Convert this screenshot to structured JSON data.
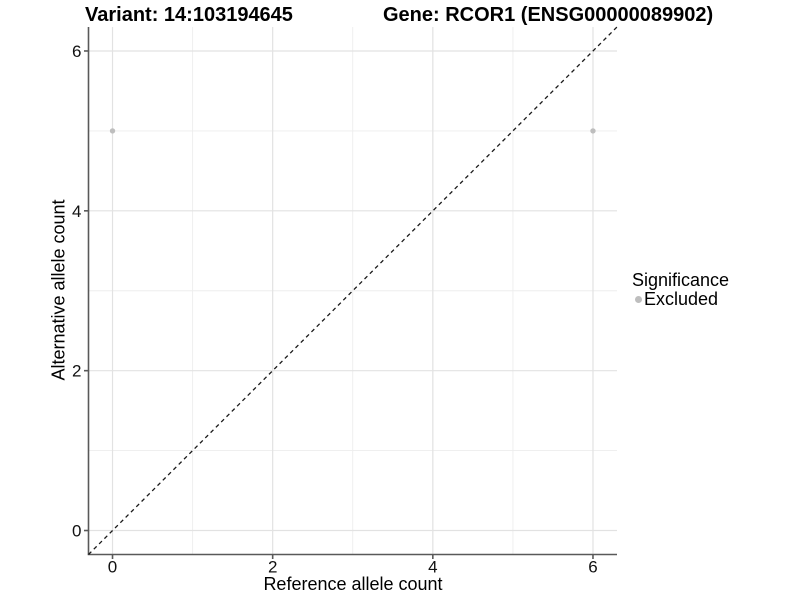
{
  "header": {
    "variant_title": "Variant: 14:103194645",
    "gene_title": "Gene: RCOR1 (ENSG00000089902)"
  },
  "axes": {
    "x_label": "Reference allele count",
    "y_label": "Alternative allele count"
  },
  "legend": {
    "title": "Significance",
    "items": [
      {
        "label": "Excluded",
        "color": "#bebebe"
      }
    ]
  },
  "colors": {
    "background": "#ffffff",
    "grid_major": "#e2e2e2",
    "grid_minor": "#ededed",
    "axis_line": "#595959",
    "tick_text": "#111111",
    "point_excluded": "#bebebe",
    "reference_line": "#1a1a1a"
  },
  "chart_data": {
    "type": "scatter",
    "title": "Variant: 14:103194645   Gene: RCOR1 (ENSG00000089902)",
    "xlabel": "Reference allele count",
    "ylabel": "Alternative allele count",
    "xlim": [
      -0.3,
      6.3
    ],
    "ylim": [
      -0.3,
      6.3
    ],
    "x_ticks": [
      0,
      2,
      4,
      6
    ],
    "y_ticks": [
      0,
      2,
      4,
      6
    ],
    "x_minor_ticks": [
      1,
      3,
      5
    ],
    "y_minor_ticks": [
      1,
      3,
      5
    ],
    "grid": true,
    "legend_title": "Significance",
    "legend_position": "right",
    "series": [
      {
        "name": "Excluded",
        "color": "#bebebe",
        "points": [
          [
            0,
            5
          ],
          [
            6,
            5
          ]
        ]
      }
    ],
    "reference_line": {
      "type": "identity-diagonal",
      "equation": "y = x",
      "style": "dashed",
      "color": "#1a1a1a"
    }
  }
}
